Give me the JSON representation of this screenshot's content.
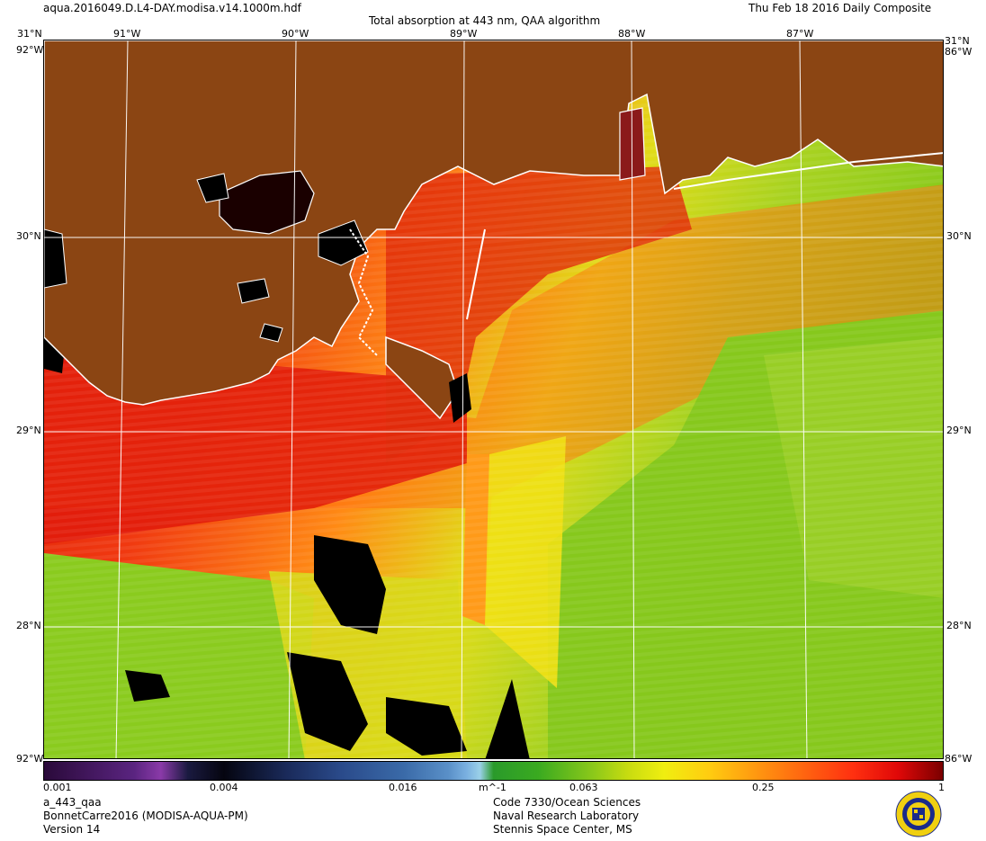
{
  "header": {
    "filename": "aqua.2016049.D.L4-DAY.modisa.v14.1000m.hdf",
    "title": "Total absorption at 443 nm, QAA algorithm",
    "date": "Thu Feb 18 2016 Daily Composite"
  },
  "map": {
    "lon_labels": [
      "91°W",
      "90°W",
      "89°W",
      "88°W",
      "87°W"
    ],
    "lat_labels": [
      "30°N",
      "29°N",
      "28°N"
    ],
    "corner_top_left": "31°N",
    "corner_top_right": "31°N",
    "corner_edge_left": "92°W",
    "corner_edge_right": "86°W",
    "colors": {
      "land": "#8b4513",
      "coast": "#ffffff",
      "grid": "#ffffff",
      "no_data": "#000000"
    }
  },
  "colorbar": {
    "ticks": [
      "0.001",
      "0.004",
      "0.016",
      "0.063",
      "0.25",
      "1"
    ],
    "unit": "m^-1"
  },
  "footer": {
    "product": "a_443_qaa",
    "dataset": "BonnetCarre2016 (MODISA-AQUA-PM)",
    "version": "Version 14",
    "org_line1": "Code 7330/Ocean Sciences",
    "org_line2": "Naval Research Laboratory",
    "org_line3": "Stennis Space Center, MS"
  }
}
